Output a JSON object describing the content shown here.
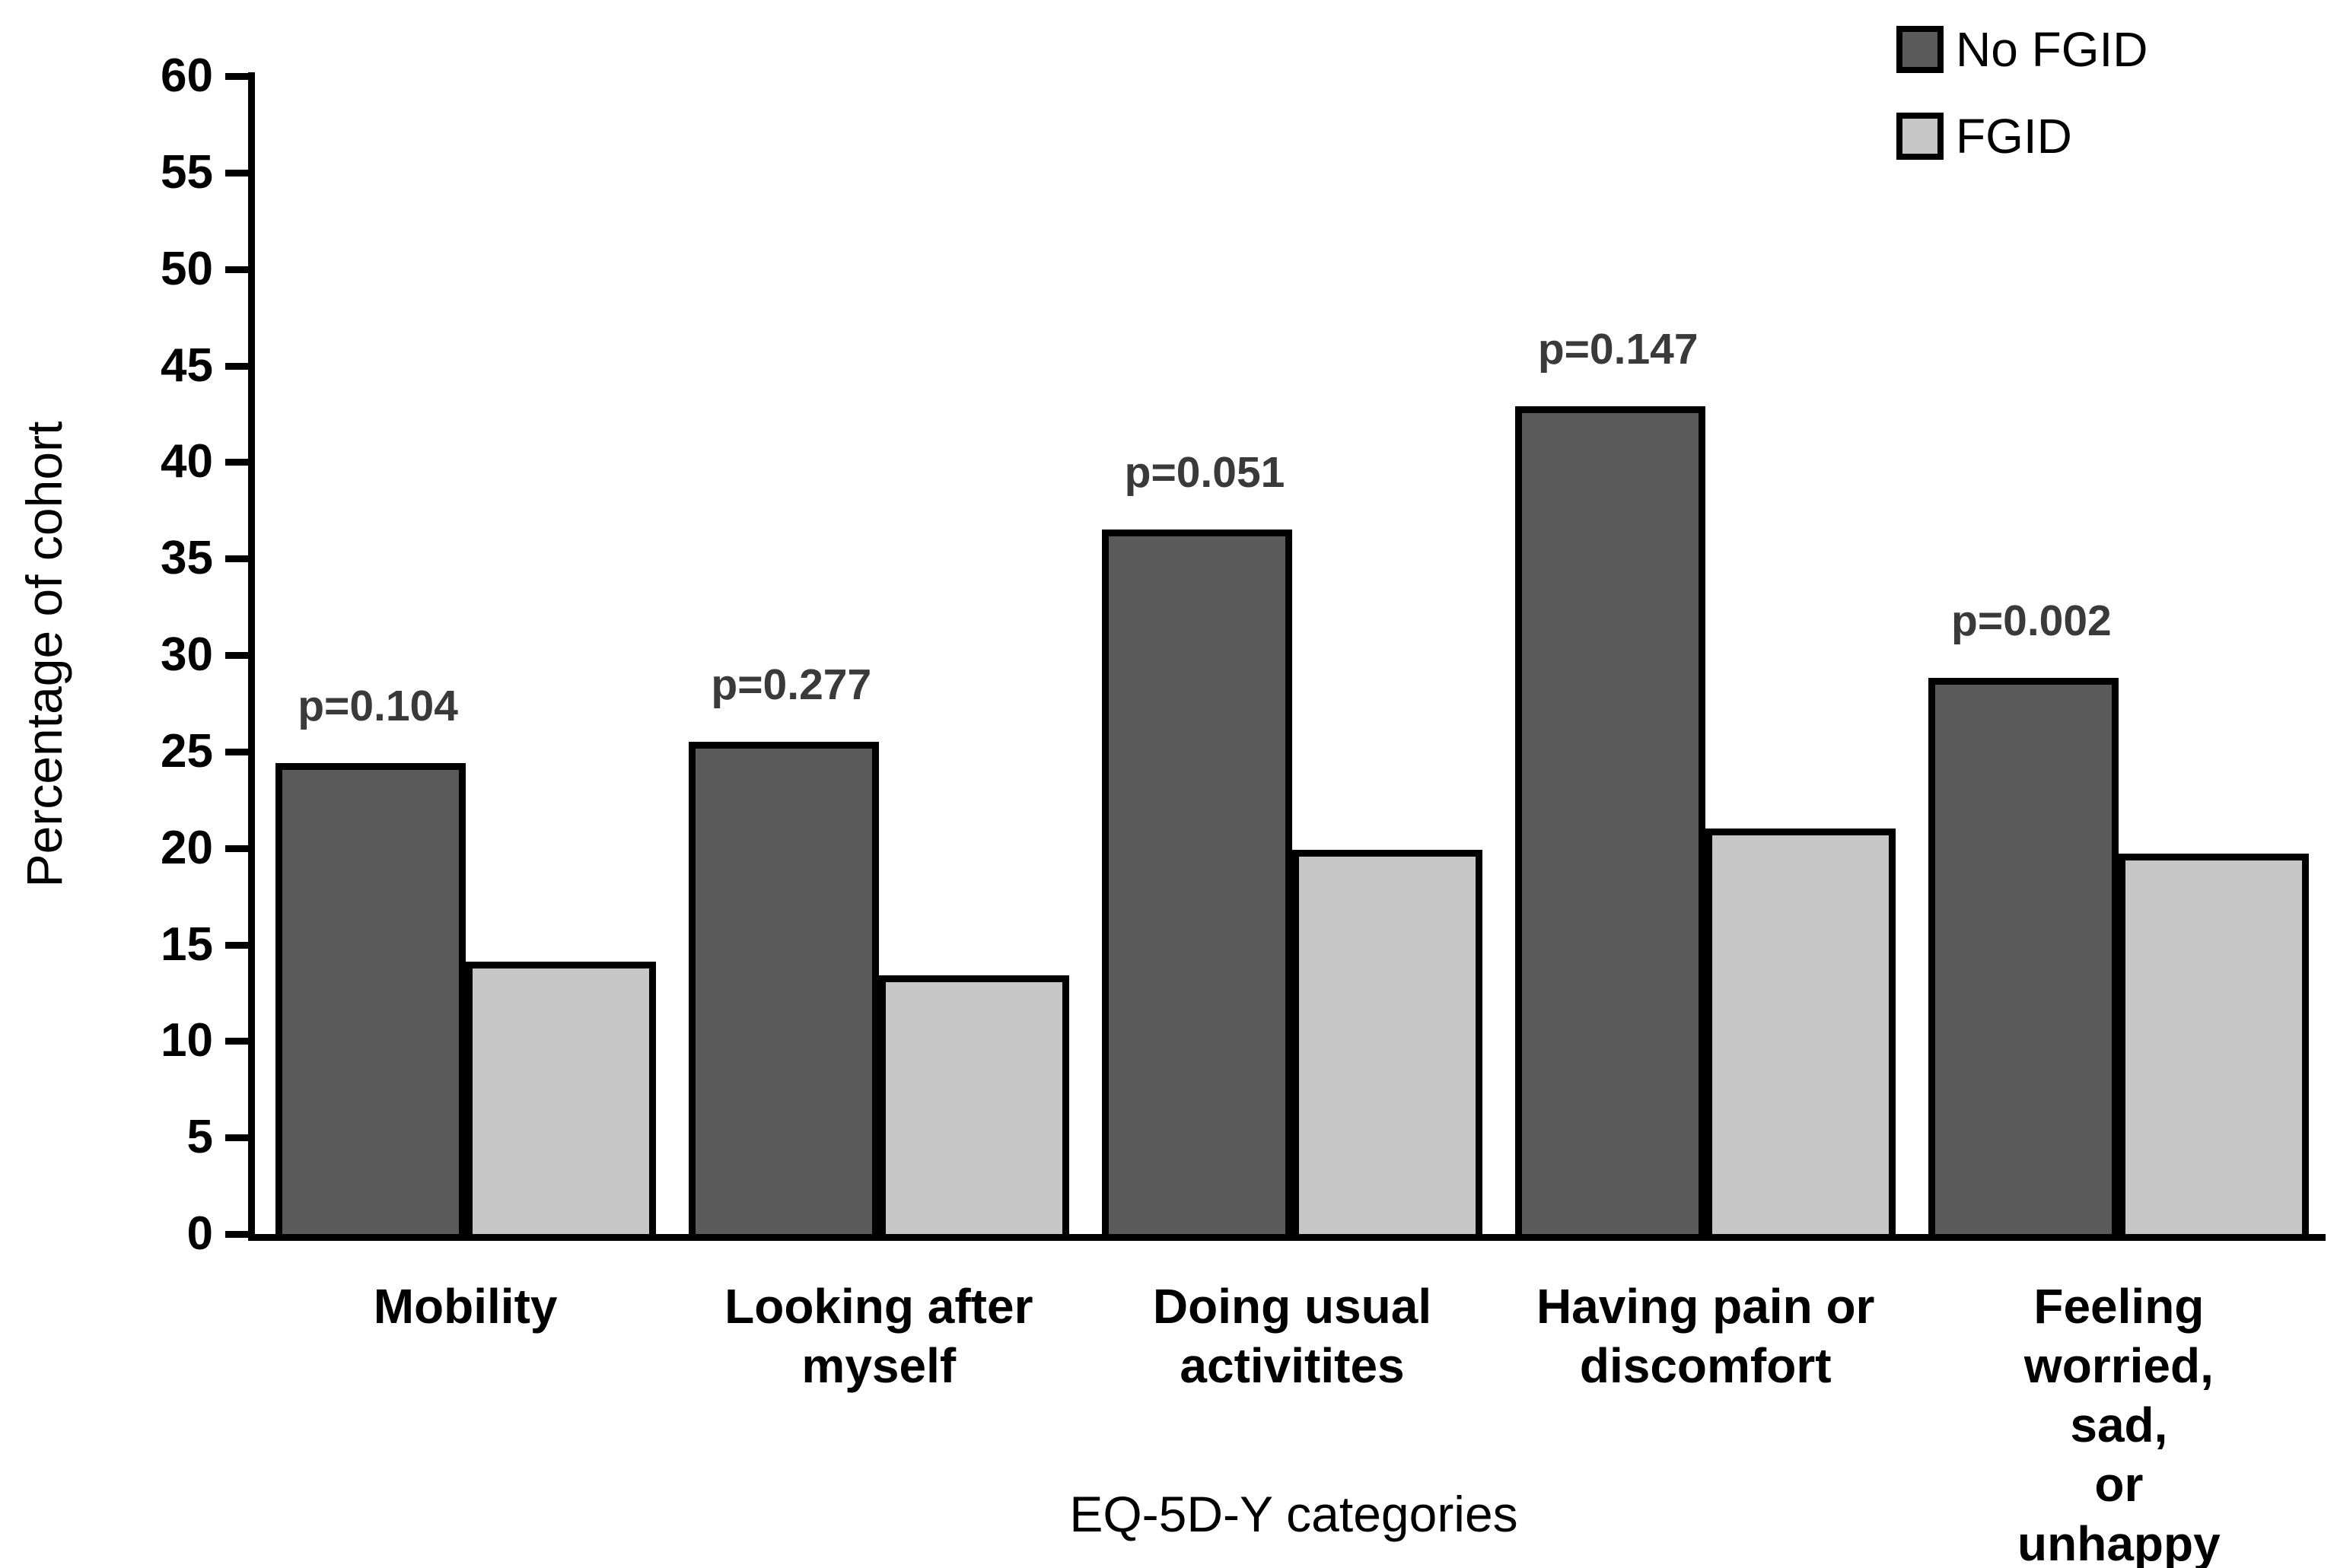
{
  "chart_data": {
    "type": "bar",
    "title": "",
    "categories": [
      "Mobility",
      "Looking after\nmyself",
      "Doing usual\nactivitites",
      "Having pain or\ndiscomfort",
      "Feeling\nworried, sad,\nor unhappy"
    ],
    "series": [
      {
        "name": "No FGID",
        "color": "#5a5a5a",
        "values": [
          24.4,
          25.5,
          36.5,
          42.9,
          28.8
        ]
      },
      {
        "name": "FGID",
        "color": "#c6c6c6",
        "values": [
          14.1,
          13.4,
          19.9,
          21.0,
          19.7
        ]
      }
    ],
    "p_values": [
      "p=0.104",
      "p=0.277",
      "p=0.051",
      "p=0.147",
      "p=0.002"
    ],
    "xlabel": "EQ-5D-Y categories",
    "ylabel": "Percentage of cohort",
    "ylim": [
      0,
      60
    ],
    "yticks": [
      0,
      5,
      10,
      15,
      20,
      25,
      30,
      35,
      40,
      45,
      50,
      55,
      60
    ],
    "grid": false,
    "legend_position": "top-right",
    "colors": {
      "bar_border": "#000000",
      "axis": "#000000",
      "p_label": "#3a3a3a",
      "text": "#000000"
    }
  }
}
